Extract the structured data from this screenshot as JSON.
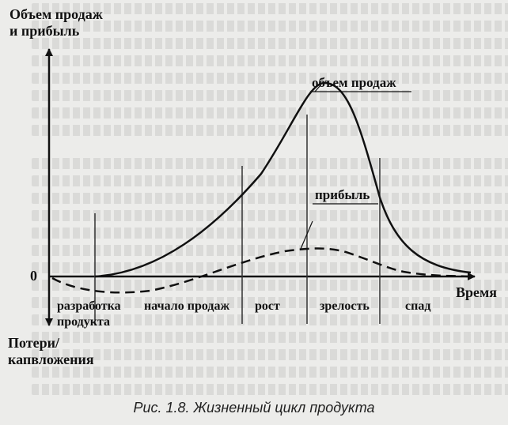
{
  "diagram": {
    "y_axis_top_label": [
      "Объем продаж",
      "и прибыль"
    ],
    "y_axis_bottom_label": [
      "Потери/",
      "капвложения"
    ],
    "zero_label": "0",
    "x_axis_label": "Время",
    "curve_sales_label": "объем продаж",
    "curve_profit_label": "прибыль",
    "stages": [
      {
        "label": [
          "разработка",
          "продукта"
        ]
      },
      {
        "label": [
          "начало продаж"
        ]
      },
      {
        "label": [
          "рост"
        ]
      },
      {
        "label": [
          "зрелость"
        ]
      },
      {
        "label": [
          "спад"
        ]
      }
    ]
  },
  "caption": "Рис. 1.8. Жизненный цикл продукта"
}
